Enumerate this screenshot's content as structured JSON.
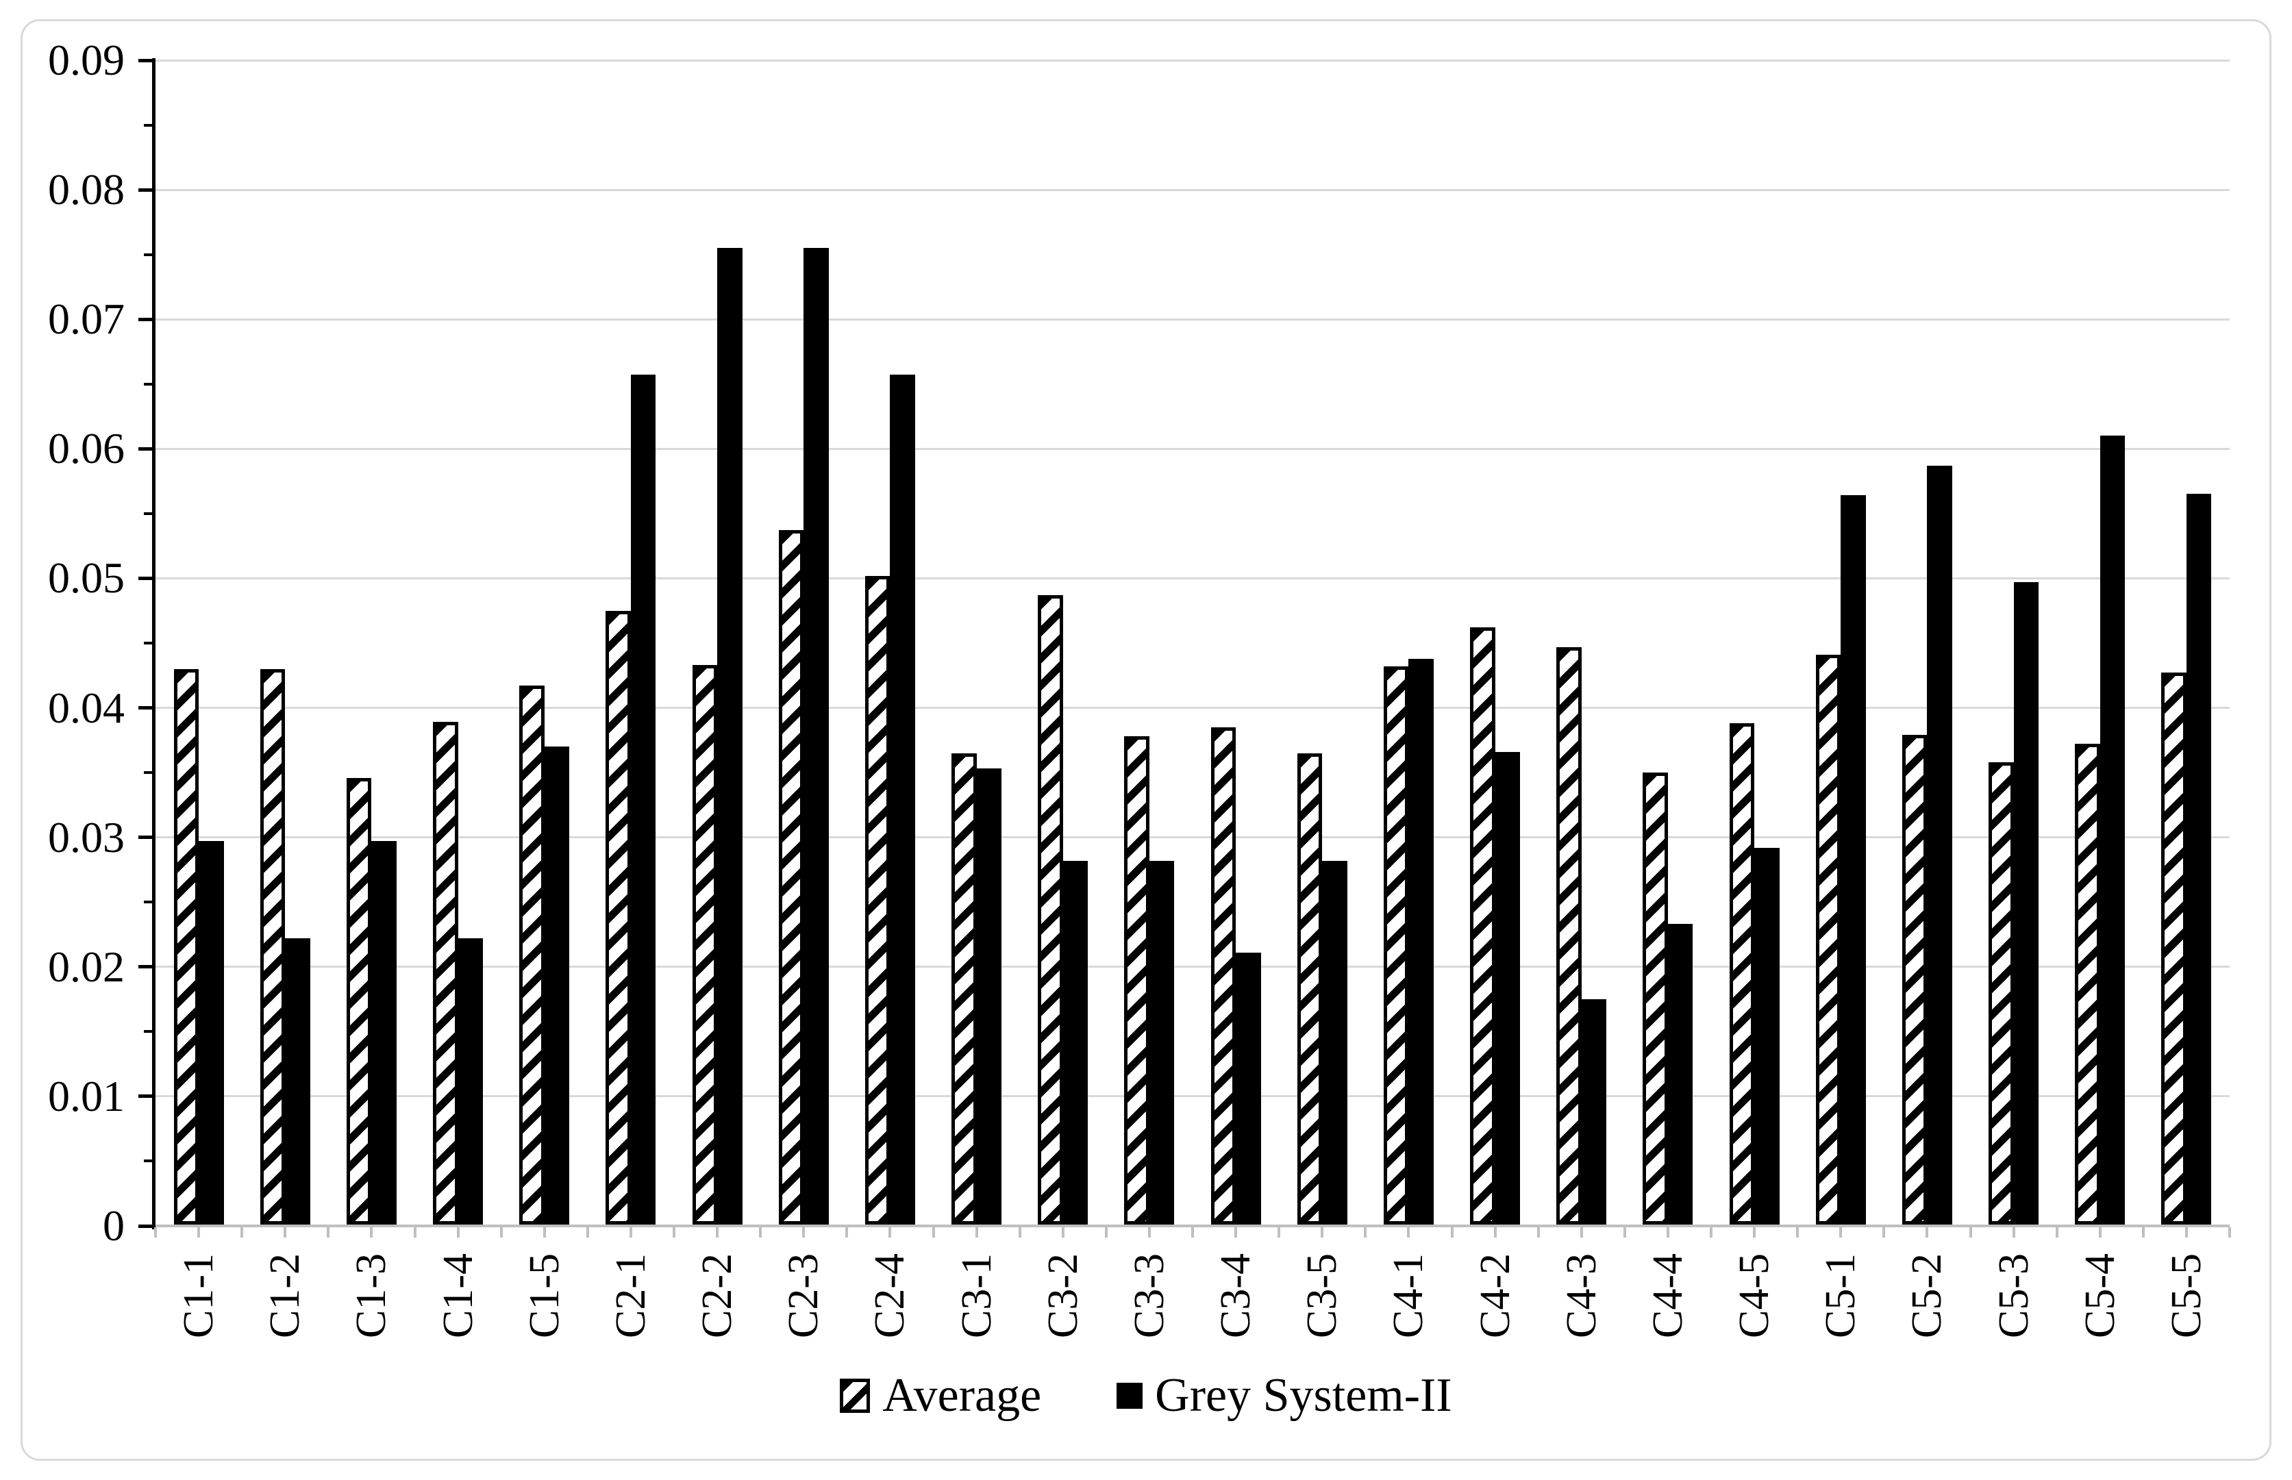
{
  "chart_data": {
    "type": "bar",
    "title": "",
    "xlabel": "",
    "ylabel": "",
    "categories": [
      "C1-1",
      "C1-2",
      "C1-3",
      "C1-4",
      "C1-5",
      "C2-1",
      "C2-2",
      "C2-3",
      "C2-4",
      "C3-1",
      "C3-2",
      "C3-3",
      "C3-4",
      "C3-5",
      "C4-1",
      "C4-2",
      "C4-3",
      "C4-4",
      "C4-5",
      "C5-1",
      "C5-2",
      "C5-3",
      "C5-4",
      "C5-5"
    ],
    "series": [
      {
        "name": "Average",
        "style": "hatched",
        "values": [
          0.0429,
          0.0429,
          0.0345,
          0.0388,
          0.0416,
          0.0474,
          0.0432,
          0.0536,
          0.0501,
          0.0364,
          0.0486,
          0.0377,
          0.0384,
          0.0364,
          0.0431,
          0.0461,
          0.0446,
          0.0349,
          0.0387,
          0.044,
          0.0378,
          0.0357,
          0.0371,
          0.0426
        ]
      },
      {
        "name": "Grey System-II",
        "style": "solid",
        "values": [
          0.0296,
          0.0221,
          0.0296,
          0.0221,
          0.0369,
          0.0656,
          0.0754,
          0.0754,
          0.0656,
          0.0352,
          0.0281,
          0.0281,
          0.021,
          0.0281,
          0.0437,
          0.0365,
          0.0174,
          0.0232,
          0.0291,
          0.0563,
          0.0586,
          0.0496,
          0.0609,
          0.0564
        ]
      }
    ],
    "ylim": [
      0,
      0.09
    ],
    "ytick_step": 0.01,
    "ytick_minor_step": 0.005,
    "ytick_labels": [
      "0",
      "0.01",
      "0.02",
      "0.03",
      "0.04",
      "0.05",
      "0.06",
      "0.07",
      "0.08",
      "0.09"
    ],
    "grid": true,
    "legend_position": "bottom-center"
  },
  "colors": {
    "bar_fill": "#000000",
    "hatch_background": "#ffffff",
    "gridline": "#d9d9d9",
    "value_axis_line": "#000000",
    "category_axis_line": "#bfbfbf",
    "background": "#ffffff",
    "outer_border": "#d9d9d9",
    "text": "#000000"
  }
}
